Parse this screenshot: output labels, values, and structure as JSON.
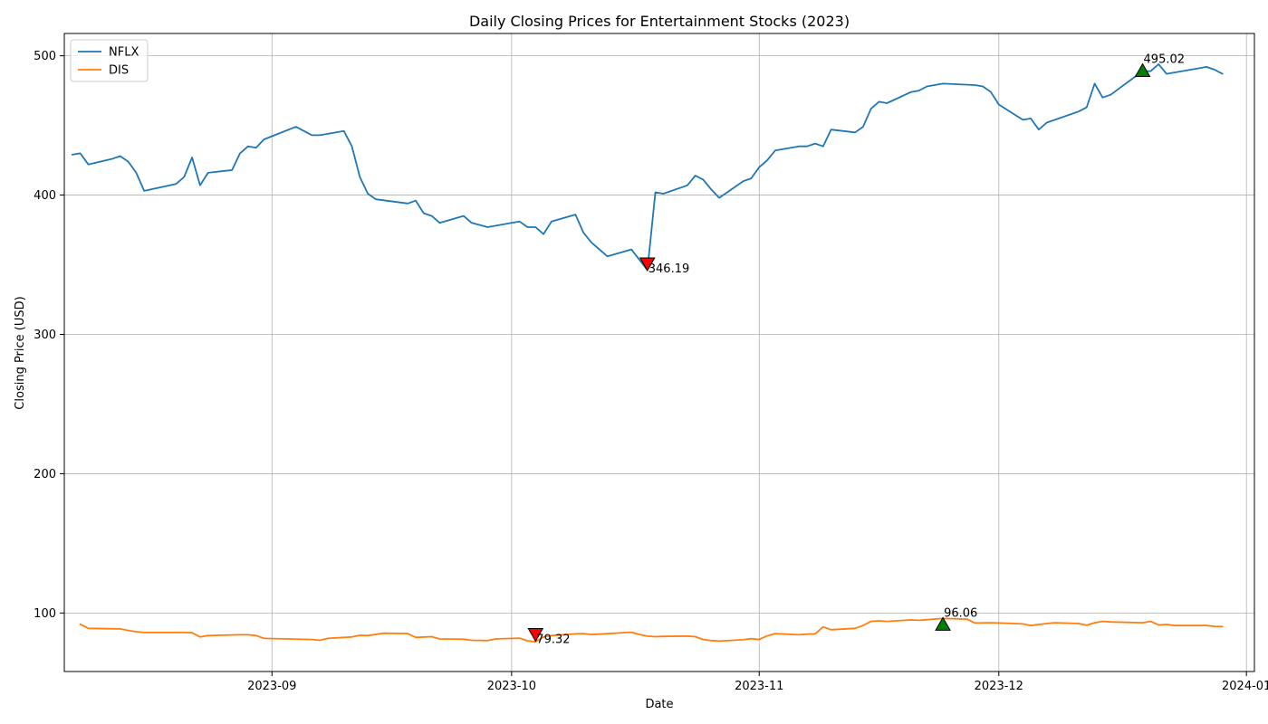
{
  "chart_data": {
    "type": "line",
    "title": "Daily Closing Prices for Entertainment Stocks (2023)",
    "xlabel": "Date",
    "ylabel": "Closing Price (USD)",
    "xlim": [
      "2023-08-06",
      "2024-01-02"
    ],
    "ylim": [
      58,
      516
    ],
    "x_ticks": [
      "2023-09-01",
      "2023-10-01",
      "2023-11-01",
      "2023-12-01",
      "2024-01-01"
    ],
    "x_tick_labels": [
      "2023-09",
      "2023-10",
      "2023-11",
      "2023-12",
      "2024-01"
    ],
    "y_ticks": [
      100,
      200,
      300,
      400,
      500
    ],
    "y_tick_labels": [
      "100",
      "200",
      "300",
      "400",
      "500"
    ],
    "grid": true,
    "legend": {
      "placement": "top-left",
      "entries": [
        "NFLX",
        "DIS"
      ]
    },
    "colors": {
      "NFLX": "#1f77b4",
      "DIS": "#ff7f0e",
      "max_marker": "#008000",
      "min_marker": "#ff0000"
    },
    "series": [
      {
        "name": "NFLX",
        "points": [
          [
            "2023-08-07",
            429
          ],
          [
            "2023-08-08",
            430
          ],
          [
            "2023-08-09",
            422
          ],
          [
            "2023-08-12",
            426
          ],
          [
            "2023-08-13",
            428
          ],
          [
            "2023-08-14",
            424
          ],
          [
            "2023-08-15",
            416
          ],
          [
            "2023-08-16",
            403
          ],
          [
            "2023-08-20",
            408
          ],
          [
            "2023-08-21",
            413
          ],
          [
            "2023-08-22",
            427
          ],
          [
            "2023-08-23",
            407
          ],
          [
            "2023-08-24",
            416
          ],
          [
            "2023-08-27",
            418
          ],
          [
            "2023-08-28",
            430
          ],
          [
            "2023-08-29",
            435
          ],
          [
            "2023-08-30",
            434
          ],
          [
            "2023-08-31",
            440
          ],
          [
            "2023-09-04",
            449
          ],
          [
            "2023-09-06",
            443
          ],
          [
            "2023-09-07",
            443
          ],
          [
            "2023-09-10",
            446
          ],
          [
            "2023-09-11",
            435
          ],
          [
            "2023-09-12",
            413
          ],
          [
            "2023-09-13",
            401
          ],
          [
            "2023-09-14",
            397
          ],
          [
            "2023-09-18",
            394
          ],
          [
            "2023-09-19",
            396
          ],
          [
            "2023-09-20",
            387
          ],
          [
            "2023-09-21",
            385
          ],
          [
            "2023-09-22",
            380
          ],
          [
            "2023-09-25",
            385
          ],
          [
            "2023-09-26",
            380
          ],
          [
            "2023-09-28",
            377
          ],
          [
            "2023-10-01",
            380
          ],
          [
            "2023-10-02",
            381
          ],
          [
            "2023-10-03",
            377
          ],
          [
            "2023-10-04",
            377
          ],
          [
            "2023-10-05",
            372
          ],
          [
            "2023-10-06",
            381
          ],
          [
            "2023-10-09",
            386
          ],
          [
            "2023-10-10",
            373
          ],
          [
            "2023-10-11",
            366
          ],
          [
            "2023-10-13",
            356
          ],
          [
            "2023-10-16",
            361
          ],
          [
            "2023-10-18",
            346.19
          ],
          [
            "2023-10-19",
            402
          ],
          [
            "2023-10-20",
            401
          ],
          [
            "2023-10-23",
            407
          ],
          [
            "2023-10-24",
            414
          ],
          [
            "2023-10-25",
            411
          ],
          [
            "2023-10-26",
            404
          ],
          [
            "2023-10-27",
            398
          ],
          [
            "2023-10-30",
            410
          ],
          [
            "2023-10-31",
            412
          ],
          [
            "2023-11-01",
            420
          ],
          [
            "2023-11-02",
            425
          ],
          [
            "2023-11-03",
            432
          ],
          [
            "2023-11-06",
            435
          ],
          [
            "2023-11-07",
            435
          ],
          [
            "2023-11-08",
            437
          ],
          [
            "2023-11-09",
            435
          ],
          [
            "2023-11-10",
            447
          ],
          [
            "2023-11-13",
            445
          ],
          [
            "2023-11-14",
            449
          ],
          [
            "2023-11-15",
            462
          ],
          [
            "2023-11-16",
            467
          ],
          [
            "2023-11-17",
            466
          ],
          [
            "2023-11-20",
            474
          ],
          [
            "2023-11-21",
            475
          ],
          [
            "2023-11-22",
            478
          ],
          [
            "2023-11-24",
            480
          ],
          [
            "2023-11-28",
            479
          ],
          [
            "2023-11-29",
            478
          ],
          [
            "2023-11-30",
            474
          ],
          [
            "2023-12-01",
            465
          ],
          [
            "2023-12-04",
            454
          ],
          [
            "2023-12-05",
            455
          ],
          [
            "2023-12-06",
            447
          ],
          [
            "2023-12-07",
            452
          ],
          [
            "2023-12-11",
            460
          ],
          [
            "2023-12-12",
            463
          ],
          [
            "2023-12-13",
            480
          ],
          [
            "2023-12-14",
            470
          ],
          [
            "2023-12-15",
            472
          ],
          [
            "2023-12-19",
            489
          ],
          [
            "2023-12-20",
            489
          ],
          [
            "2023-12-21",
            494
          ],
          [
            "2023-12-22",
            487
          ],
          [
            "2023-12-26",
            491
          ],
          [
            "2023-12-27",
            492
          ],
          [
            "2023-12-28",
            490
          ],
          [
            "2023-12-29",
            487
          ]
        ]
      },
      {
        "name": "DIS",
        "points": [
          [
            "2023-08-08",
            92
          ],
          [
            "2023-08-09",
            89
          ],
          [
            "2023-08-13",
            88.6
          ],
          [
            "2023-08-14",
            87.5
          ],
          [
            "2023-08-15",
            86.6
          ],
          [
            "2023-08-16",
            86
          ],
          [
            "2023-08-21",
            86
          ],
          [
            "2023-08-22",
            85.8
          ],
          [
            "2023-08-23",
            82.8
          ],
          [
            "2023-08-24",
            83.8
          ],
          [
            "2023-08-28",
            84.4
          ],
          [
            "2023-08-29",
            84.4
          ],
          [
            "2023-08-30",
            83.8
          ],
          [
            "2023-08-31",
            81.8
          ],
          [
            "2023-09-06",
            81
          ],
          [
            "2023-09-07",
            80.4
          ],
          [
            "2023-09-08",
            81.8
          ],
          [
            "2023-09-11",
            82.8
          ],
          [
            "2023-09-12",
            84
          ],
          [
            "2023-09-13",
            83.8
          ],
          [
            "2023-09-15",
            85.5
          ],
          [
            "2023-09-18",
            85.2
          ],
          [
            "2023-09-19",
            82.5
          ],
          [
            "2023-09-21",
            83
          ],
          [
            "2023-09-22",
            81.4
          ],
          [
            "2023-09-25",
            81.2
          ],
          [
            "2023-09-26",
            80.4
          ],
          [
            "2023-09-28",
            80.2
          ],
          [
            "2023-09-29",
            81.4
          ],
          [
            "2023-10-02",
            82
          ],
          [
            "2023-10-03",
            80
          ],
          [
            "2023-10-04",
            79.32
          ],
          [
            "2023-10-05",
            82.8
          ],
          [
            "2023-10-06",
            83.8
          ],
          [
            "2023-10-09",
            85
          ],
          [
            "2023-10-10",
            85.2
          ],
          [
            "2023-10-11",
            84.6
          ],
          [
            "2023-10-12",
            84.8
          ],
          [
            "2023-10-16",
            86.2
          ],
          [
            "2023-10-17",
            84.6
          ],
          [
            "2023-10-18",
            83.4
          ],
          [
            "2023-10-19",
            83
          ],
          [
            "2023-10-20",
            83.2
          ],
          [
            "2023-10-23",
            83.4
          ],
          [
            "2023-10-24",
            83
          ],
          [
            "2023-10-25",
            81
          ],
          [
            "2023-10-26",
            80.2
          ],
          [
            "2023-10-27",
            79.8
          ],
          [
            "2023-10-30",
            80.8
          ],
          [
            "2023-10-31",
            81.6
          ],
          [
            "2023-11-01",
            81
          ],
          [
            "2023-11-02",
            83.6
          ],
          [
            "2023-11-03",
            85.2
          ],
          [
            "2023-11-06",
            84.4
          ],
          [
            "2023-11-07",
            84.8
          ],
          [
            "2023-11-08",
            85
          ],
          [
            "2023-11-09",
            90
          ],
          [
            "2023-11-10",
            88
          ],
          [
            "2023-11-13",
            89
          ],
          [
            "2023-11-14",
            91
          ],
          [
            "2023-11-15",
            94
          ],
          [
            "2023-11-16",
            94.4
          ],
          [
            "2023-11-17",
            94
          ],
          [
            "2023-11-20",
            95
          ],
          [
            "2023-11-21",
            94.8
          ],
          [
            "2023-11-24",
            96.06
          ],
          [
            "2023-11-27",
            95.6
          ],
          [
            "2023-11-28",
            92.8
          ],
          [
            "2023-11-30",
            93
          ],
          [
            "2023-12-01",
            92.8
          ],
          [
            "2023-12-04",
            92.2
          ],
          [
            "2023-12-05",
            91
          ],
          [
            "2023-12-07",
            92.4
          ],
          [
            "2023-12-08",
            93
          ],
          [
            "2023-12-11",
            92.4
          ],
          [
            "2023-12-12",
            91.2
          ],
          [
            "2023-12-13",
            93
          ],
          [
            "2023-12-14",
            94
          ],
          [
            "2023-12-15",
            93.6
          ],
          [
            "2023-12-19",
            93
          ],
          [
            "2023-12-20",
            94
          ],
          [
            "2023-12-21",
            91.4
          ],
          [
            "2023-12-22",
            91.8
          ],
          [
            "2023-12-23",
            91
          ],
          [
            "2023-12-27",
            91
          ],
          [
            "2023-12-28",
            90.4
          ],
          [
            "2023-12-29",
            90.2
          ]
        ]
      }
    ],
    "annotations": [
      {
        "series": "NFLX",
        "kind": "max",
        "x": "2023-12-19",
        "y": 489,
        "label": "495.02"
      },
      {
        "series": "NFLX",
        "kind": "min",
        "x": "2023-10-18",
        "y": 351,
        "label": "346.19"
      },
      {
        "series": "DIS",
        "kind": "max",
        "x": "2023-11-24",
        "y": 91.5,
        "label": "96.06"
      },
      {
        "series": "DIS",
        "kind": "min",
        "x": "2023-10-04",
        "y": 85,
        "label": "79.32"
      }
    ]
  }
}
